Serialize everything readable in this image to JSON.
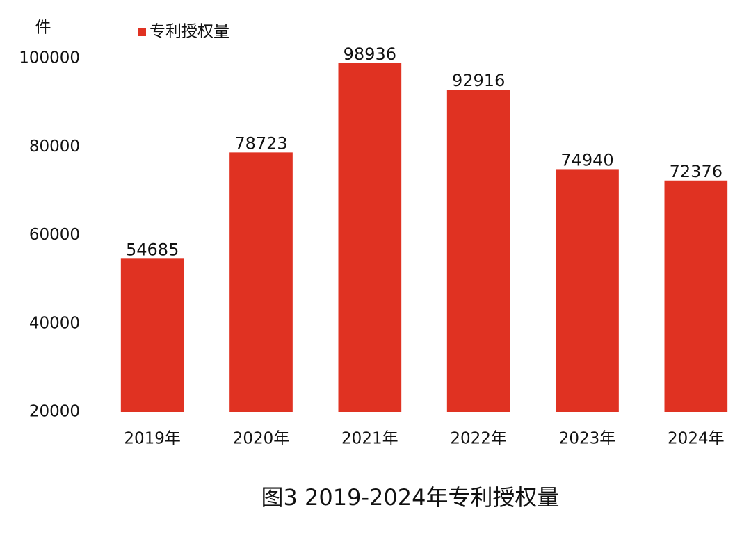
{
  "chart_data": {
    "type": "bar",
    "title": "图3 2019-2024年专利授权量",
    "y_label": "件",
    "categories": [
      "2019年",
      "2020年",
      "2021年",
      "2022年",
      "2023年",
      "2024年"
    ],
    "series": [
      {
        "name": "专利授权量",
        "color": "#e03222",
        "values": [
          54685,
          78723,
          98936,
          92916,
          74940,
          72376
        ]
      }
    ],
    "ylim": [
      20000,
      100000
    ],
    "yticks": [
      20000,
      40000,
      60000,
      80000,
      100000
    ],
    "grid": false,
    "legend": "top-left",
    "data_labels": true
  }
}
